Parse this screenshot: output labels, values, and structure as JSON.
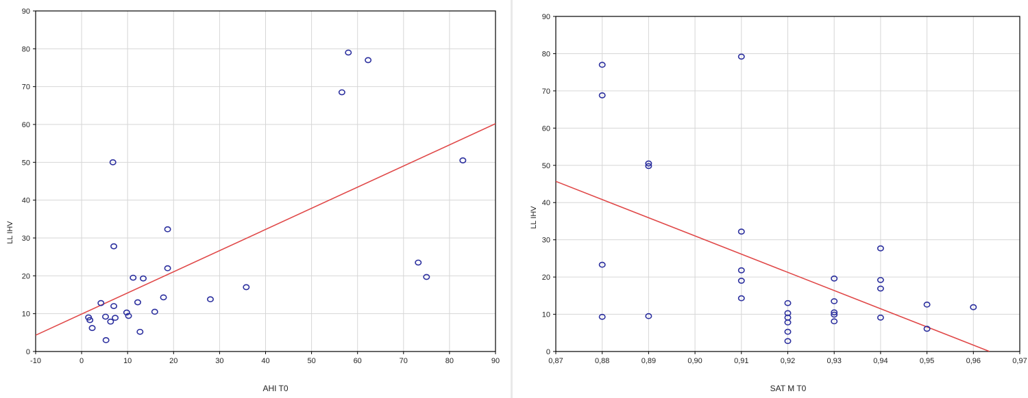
{
  "chart_data": [
    {
      "type": "scatter",
      "xlabel": "AHI T0",
      "ylabel": "LL IHV",
      "xlim": [
        -10,
        90
      ],
      "ylim": [
        0,
        90
      ],
      "xticks": [
        "-10",
        "0",
        "10",
        "20",
        "30",
        "40",
        "50",
        "60",
        "70",
        "80",
        "90"
      ],
      "yticks": [
        "0",
        "10",
        "20",
        "30",
        "40",
        "50",
        "60",
        "70",
        "80",
        "90"
      ],
      "grid": true,
      "points": [
        {
          "x": 1.5,
          "y": 9
        },
        {
          "x": 1.8,
          "y": 8.3
        },
        {
          "x": 2.3,
          "y": 6.2
        },
        {
          "x": 4.2,
          "y": 12.8
        },
        {
          "x": 5.2,
          "y": 9.2
        },
        {
          "x": 5.3,
          "y": 3
        },
        {
          "x": 6.3,
          "y": 7.9
        },
        {
          "x": 6.8,
          "y": 50
        },
        {
          "x": 7,
          "y": 27.8
        },
        {
          "x": 7,
          "y": 12
        },
        {
          "x": 7.3,
          "y": 8.9
        },
        {
          "x": 9.8,
          "y": 10.3
        },
        {
          "x": 10.2,
          "y": 9.4
        },
        {
          "x": 11.2,
          "y": 19.5
        },
        {
          "x": 12.2,
          "y": 13
        },
        {
          "x": 12.7,
          "y": 5.2
        },
        {
          "x": 13.4,
          "y": 19.3
        },
        {
          "x": 15.9,
          "y": 10.5
        },
        {
          "x": 17.8,
          "y": 14.3
        },
        {
          "x": 18.7,
          "y": 32.3
        },
        {
          "x": 18.7,
          "y": 22
        },
        {
          "x": 28,
          "y": 13.8
        },
        {
          "x": 35.8,
          "y": 17
        },
        {
          "x": 56.6,
          "y": 68.5
        },
        {
          "x": 58,
          "y": 79
        },
        {
          "x": 62.3,
          "y": 77
        },
        {
          "x": 73.2,
          "y": 23.5
        },
        {
          "x": 75,
          "y": 19.7
        },
        {
          "x": 82.9,
          "y": 50.5
        }
      ],
      "fit_line": {
        "x": [
          -10,
          90
        ],
        "y": [
          4.3,
          60.2
        ]
      },
      "marker_color": "#2b2f9e",
      "line_color": "#e04848"
    },
    {
      "type": "scatter",
      "xlabel": "SAT M T0",
      "ylabel": "LL IHV",
      "xlim": [
        0.87,
        0.97
      ],
      "ylim": [
        0,
        90
      ],
      "xticks": [
        "0,87",
        "0,88",
        "0,89",
        "0,90",
        "0,91",
        "0,92",
        "0,93",
        "0,94",
        "0,95",
        "0,96",
        "0,97"
      ],
      "yticks": [
        "0",
        "10",
        "20",
        "30",
        "40",
        "50",
        "60",
        "70",
        "80",
        "90"
      ],
      "grid": true,
      "points": [
        {
          "x": 0.88,
          "y": 77
        },
        {
          "x": 0.88,
          "y": 68.8
        },
        {
          "x": 0.88,
          "y": 23.3
        },
        {
          "x": 0.88,
          "y": 9.3
        },
        {
          "x": 0.89,
          "y": 50.5
        },
        {
          "x": 0.89,
          "y": 49.8
        },
        {
          "x": 0.89,
          "y": 9.5
        },
        {
          "x": 0.91,
          "y": 79.2
        },
        {
          "x": 0.91,
          "y": 32.2
        },
        {
          "x": 0.91,
          "y": 21.8
        },
        {
          "x": 0.91,
          "y": 19
        },
        {
          "x": 0.91,
          "y": 14.3
        },
        {
          "x": 0.92,
          "y": 13
        },
        {
          "x": 0.92,
          "y": 10.3
        },
        {
          "x": 0.92,
          "y": 9.1
        },
        {
          "x": 0.92,
          "y": 7.8
        },
        {
          "x": 0.92,
          "y": 5.3
        },
        {
          "x": 0.92,
          "y": 2.8
        },
        {
          "x": 0.93,
          "y": 19.6
        },
        {
          "x": 0.93,
          "y": 13.5
        },
        {
          "x": 0.93,
          "y": 10.5
        },
        {
          "x": 0.93,
          "y": 9.9
        },
        {
          "x": 0.93,
          "y": 8.1
        },
        {
          "x": 0.94,
          "y": 27.7
        },
        {
          "x": 0.94,
          "y": 19.2
        },
        {
          "x": 0.94,
          "y": 16.9
        },
        {
          "x": 0.94,
          "y": 9.1
        },
        {
          "x": 0.95,
          "y": 12.6
        },
        {
          "x": 0.95,
          "y": 6.1
        },
        {
          "x": 0.96,
          "y": 11.9
        }
      ],
      "fit_line": {
        "x": [
          0.87,
          0.9635
        ],
        "y": [
          45.7,
          0
        ]
      },
      "marker_color": "#2b2f9e",
      "line_color": "#e04848"
    }
  ]
}
